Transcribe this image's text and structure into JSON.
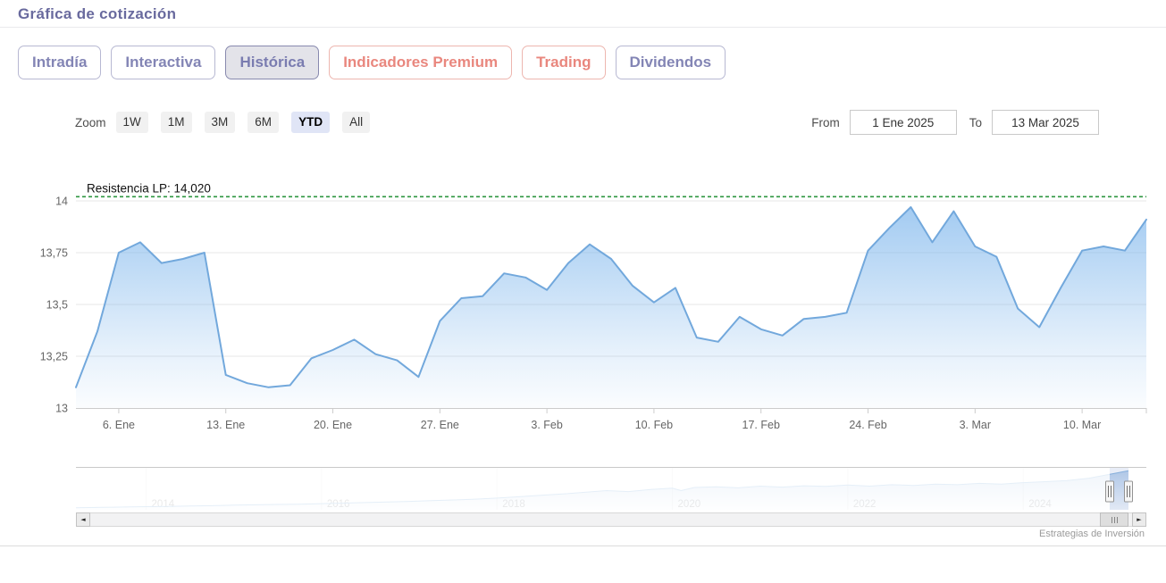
{
  "header": {
    "title": "Gráfica de cotización"
  },
  "tabs": {
    "items": [
      {
        "name": "intradia",
        "label": "Intradía",
        "style": "normal",
        "active": false
      },
      {
        "name": "interactiva",
        "label": "Interactiva",
        "style": "normal",
        "active": false
      },
      {
        "name": "historica",
        "label": "Histórica",
        "style": "normal",
        "active": true
      },
      {
        "name": "indicadores-premium",
        "label": "Indicadores Premium",
        "style": "premium",
        "active": false
      },
      {
        "name": "trading",
        "label": "Trading",
        "style": "premium",
        "active": false
      },
      {
        "name": "dividendos",
        "label": "Dividendos",
        "style": "normal",
        "active": false
      }
    ]
  },
  "range_selector": {
    "zoom_label": "Zoom",
    "presets": [
      {
        "label": "1W",
        "selected": false
      },
      {
        "label": "1M",
        "selected": false
      },
      {
        "label": "3M",
        "selected": false
      },
      {
        "label": "6M",
        "selected": false
      },
      {
        "label": "YTD",
        "selected": true
      },
      {
        "label": "All",
        "selected": false
      }
    ],
    "from_label": "From",
    "from_value": "1 Ene 2025",
    "to_label": "To",
    "to_value": "13 Mar 2025"
  },
  "chart_data": [
    {
      "type": "area",
      "title": "",
      "xlabel": "",
      "ylabel": "",
      "ylim": [
        13,
        14.12
      ],
      "grid": true,
      "legend_position": "none",
      "dates": [
        "2 Ene",
        "3 Ene",
        "6 Ene",
        "7 Ene",
        "8 Ene",
        "9 Ene",
        "10 Ene",
        "13 Ene",
        "14 Ene",
        "15 Ene",
        "16 Ene",
        "17 Ene",
        "20 Ene",
        "21 Ene",
        "22 Ene",
        "23 Ene",
        "24 Ene",
        "27 Ene",
        "28 Ene",
        "29 Ene",
        "30 Ene",
        "31 Ene",
        "3 Feb",
        "4 Feb",
        "5 Feb",
        "6 Feb",
        "7 Feb",
        "10 Feb",
        "11 Feb",
        "12 Feb",
        "13 Feb",
        "14 Feb",
        "17 Feb",
        "18 Feb",
        "19 Feb",
        "20 Feb",
        "21 Feb",
        "24 Feb",
        "25 Feb",
        "26 Feb",
        "27 Feb",
        "28 Feb",
        "3 Mar",
        "4 Mar",
        "5 Mar",
        "6 Mar",
        "7 Mar",
        "10 Mar",
        "11 Mar",
        "12 Mar",
        "13 Mar"
      ],
      "values": [
        13.1,
        13.37,
        13.75,
        13.8,
        13.7,
        13.72,
        13.75,
        13.16,
        13.12,
        13.1,
        13.11,
        13.24,
        13.28,
        13.33,
        13.26,
        13.23,
        13.15,
        13.42,
        13.53,
        13.54,
        13.65,
        13.63,
        13.57,
        13.7,
        13.79,
        13.72,
        13.59,
        13.51,
        13.58,
        13.34,
        13.32,
        13.44,
        13.38,
        13.35,
        13.43,
        13.44,
        13.46,
        13.76,
        13.87,
        13.97,
        13.8,
        13.95,
        13.78,
        13.73,
        13.48,
        13.39,
        13.58,
        13.76,
        13.78,
        13.76,
        13.91
      ],
      "ytick_values": [
        14,
        13.75,
        13.5,
        13.25,
        13
      ],
      "ytick_labels": [
        "14",
        "13,75",
        "13,5",
        "13,25",
        "13"
      ],
      "xticks": [
        {
          "index": 2,
          "label": "6. Ene"
        },
        {
          "index": 7,
          "label": "13. Ene"
        },
        {
          "index": 12,
          "label": "20. Ene"
        },
        {
          "index": 17,
          "label": "27. Ene"
        },
        {
          "index": 22,
          "label": "3. Feb"
        },
        {
          "index": 27,
          "label": "10. Feb"
        },
        {
          "index": 32,
          "label": "17. Feb"
        },
        {
          "index": 37,
          "label": "24. Feb"
        },
        {
          "index": 42,
          "label": "3. Mar"
        },
        {
          "index": 47,
          "label": "10. Mar"
        }
      ],
      "annotation": {
        "label": "Resistencia LP: 14,020",
        "value": 14.02
      }
    },
    {
      "type": "area",
      "role": "navigator",
      "x": [
        2013.2,
        2013.5,
        2013.75,
        2014,
        2014.25,
        2014.5,
        2014.75,
        2015,
        2015.25,
        2015.5,
        2015.75,
        2016,
        2016.25,
        2016.5,
        2016.75,
        2017,
        2017.25,
        2017.5,
        2017.75,
        2018,
        2018.25,
        2018.5,
        2018.75,
        2019,
        2019.25,
        2019.5,
        2019.75,
        2020,
        2020.1,
        2020.25,
        2020.5,
        2020.75,
        2021,
        2021.25,
        2021.5,
        2021.75,
        2022,
        2022.25,
        2022.5,
        2022.75,
        2023,
        2023.25,
        2023.5,
        2023.75,
        2024,
        2024.25,
        2024.5,
        2024.75,
        2025,
        2025.2
      ],
      "values": [
        3.1,
        3.2,
        3.3,
        3.4,
        3.5,
        3.6,
        3.7,
        3.85,
        3.95,
        4.05,
        4.15,
        4.3,
        4.45,
        4.6,
        4.75,
        4.95,
        5.15,
        5.35,
        5.6,
        5.9,
        6.3,
        6.7,
        7.1,
        7.6,
        8.1,
        7.8,
        8.4,
        8.8,
        8.1,
        9.0,
        9.2,
        8.9,
        9.4,
        9.1,
        9.5,
        9.3,
        9.7,
        9.4,
        9.8,
        9.6,
        10.0,
        9.8,
        10.2,
        10.0,
        10.4,
        10.7,
        11.0,
        11.7,
        12.9,
        13.9
      ],
      "xtick_labels": [
        "2014",
        "2016",
        "2018",
        "2020",
        "2022",
        "2024"
      ],
      "xtick_values": [
        2014,
        2016,
        2018,
        2020,
        2022,
        2024
      ],
      "selected_range": {
        "from": "1 Ene 2025",
        "to": "13 Mar 2025"
      }
    }
  ],
  "credit": {
    "text": "Estrategias de Inversión"
  },
  "colors": {
    "accent_purple": "#696a9e",
    "tab_premium": "#e9877e",
    "series_line": "#72a8dc",
    "series_fill": "#7cb5ec",
    "resistance_green": "#2e9640",
    "selected_zoom_bg": "#e0e5f6",
    "grid": "#e7e7e7",
    "axis_text": "#666666"
  }
}
